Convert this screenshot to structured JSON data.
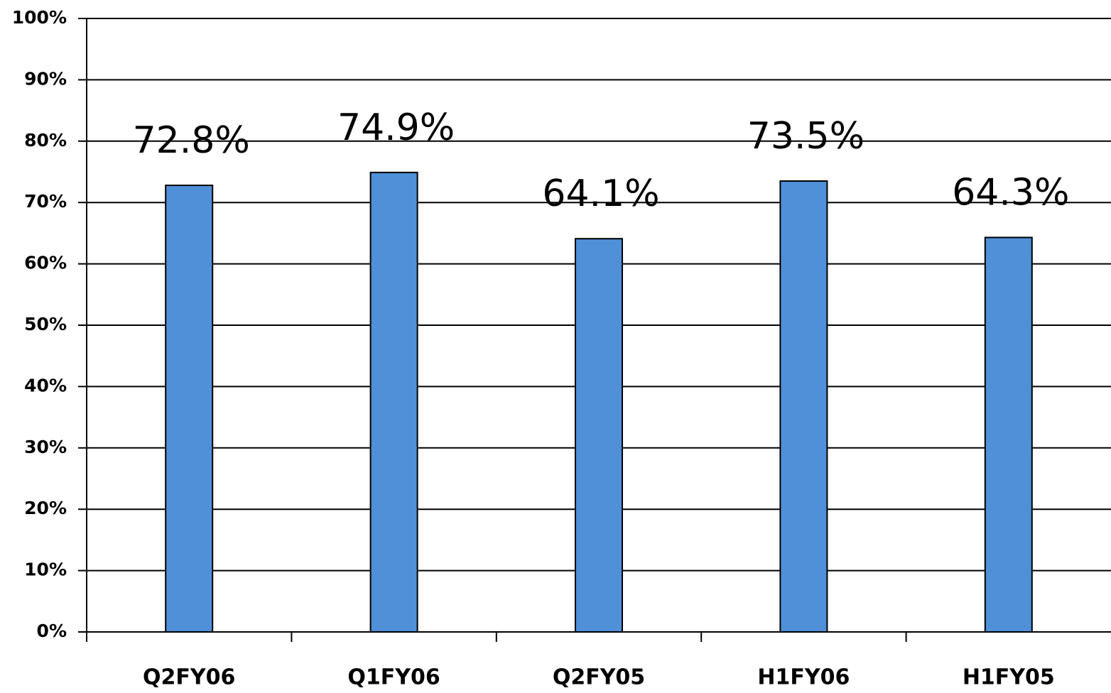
{
  "chart_data": {
    "type": "bar",
    "categories": [
      "Q2FY06",
      "Q1FY06",
      "Q2FY05",
      "H1FY06",
      "H1FY05"
    ],
    "values": [
      72.8,
      74.9,
      64.1,
      73.5,
      64.3
    ],
    "value_labels": [
      "72.8%",
      "74.9%",
      "64.1%",
      "73.5%",
      "64.3%"
    ],
    "color": "#4f90d9",
    "ylim": [
      0,
      100
    ],
    "yticks": [
      {
        "value": 0,
        "label": "0%"
      },
      {
        "value": 10,
        "label": "10%"
      },
      {
        "value": 20,
        "label": "20%"
      },
      {
        "value": 30,
        "label": "30%"
      },
      {
        "value": 40,
        "label": "40%"
      },
      {
        "value": 50,
        "label": "50%"
      },
      {
        "value": 60,
        "label": "60%"
      },
      {
        "value": 70,
        "label": "70%"
      },
      {
        "value": 80,
        "label": "80%"
      },
      {
        "value": 90,
        "label": "90%"
      },
      {
        "value": 100,
        "label": "100%"
      }
    ],
    "grid": true
  }
}
